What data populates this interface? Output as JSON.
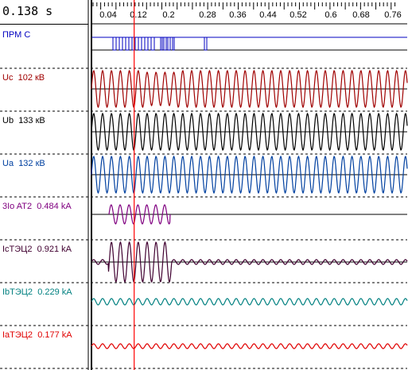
{
  "cursor_time": "0.138 s",
  "time_ruler": {
    "ticks": [
      "0.04",
      "0.12",
      "0.2",
      "0.28",
      "0.36",
      "0.44",
      "0.52",
      "0.6",
      "0.68",
      "0.76"
    ]
  },
  "cursor": {
    "time": 0.138,
    "color": "#ff0000"
  },
  "channels": [
    {
      "name": "ПРМ С",
      "value": "",
      "color": "#0000c0",
      "type": "digital"
    },
    {
      "name": "Uc",
      "value": "102 кВ",
      "color": "#a00000",
      "type": "analog"
    },
    {
      "name": "Ub",
      "value": "133 кВ",
      "color": "#000000",
      "type": "analog"
    },
    {
      "name": "Ua",
      "value": "132 кВ",
      "color": "#0040a0",
      "type": "analog"
    },
    {
      "name": "3Io AT2",
      "value": "0.484 kA",
      "color": "#800080",
      "type": "analog"
    },
    {
      "name": "IcТЭЦ2",
      "value": "0.921 kA",
      "color": "#400030",
      "type": "analog"
    },
    {
      "name": "IbТЭЦ2",
      "value": "0.229 kA",
      "color": "#008080",
      "type": "analog"
    },
    {
      "name": "IaТЭЦ2",
      "value": "0.177 kA",
      "color": "#e00000",
      "type": "analog"
    }
  ]
}
